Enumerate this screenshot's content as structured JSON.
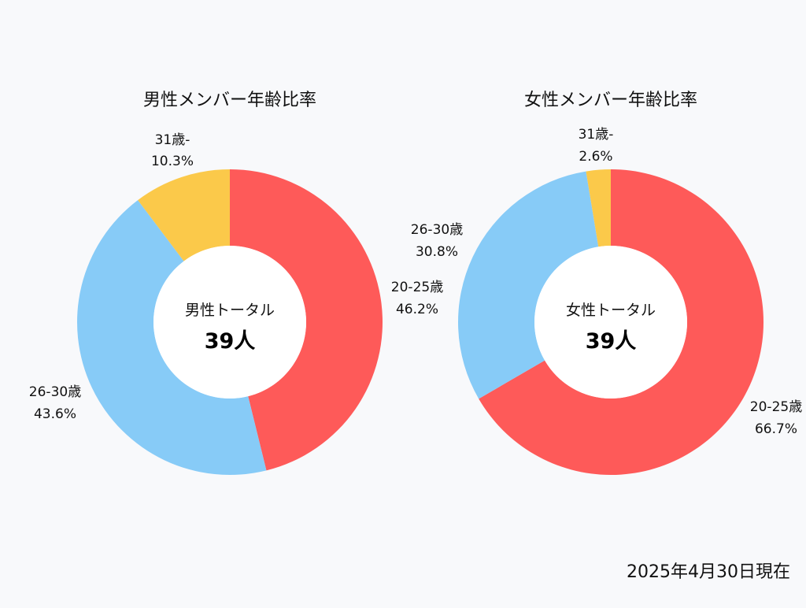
{
  "chart_data": [
    {
      "type": "pie",
      "title": "男性メンバー年齢比率",
      "center_label": "男性トータル",
      "center_value": "39人",
      "start_angle_deg": 0,
      "direction": "clockwise",
      "slices": [
        {
          "label": "20-25歳",
          "value": 46.2,
          "value_label": "46.2%",
          "color": "#fe5a59"
        },
        {
          "label": "26-30歳",
          "value": 43.6,
          "value_label": "43.6%",
          "color": "#87cbf7"
        },
        {
          "label": "31歳-",
          "value": 10.3,
          "value_label": "10.3%",
          "color": "#fbc94a"
        }
      ]
    },
    {
      "type": "pie",
      "title": "女性メンバー年齢比率",
      "center_label": "女性トータル",
      "center_value": "39人",
      "start_angle_deg": 0,
      "direction": "clockwise",
      "slices": [
        {
          "label": "20-25歳",
          "value": 66.7,
          "value_label": "66.7%",
          "color": "#fe5a59"
        },
        {
          "label": "26-30歳",
          "value": 30.8,
          "value_label": "30.8%",
          "color": "#87cbf7"
        },
        {
          "label": "31歳-",
          "value": 2.6,
          "value_label": "2.6%",
          "color": "#fbc94a"
        }
      ]
    }
  ],
  "footer": {
    "as_of": "2025年4月30日現在"
  }
}
